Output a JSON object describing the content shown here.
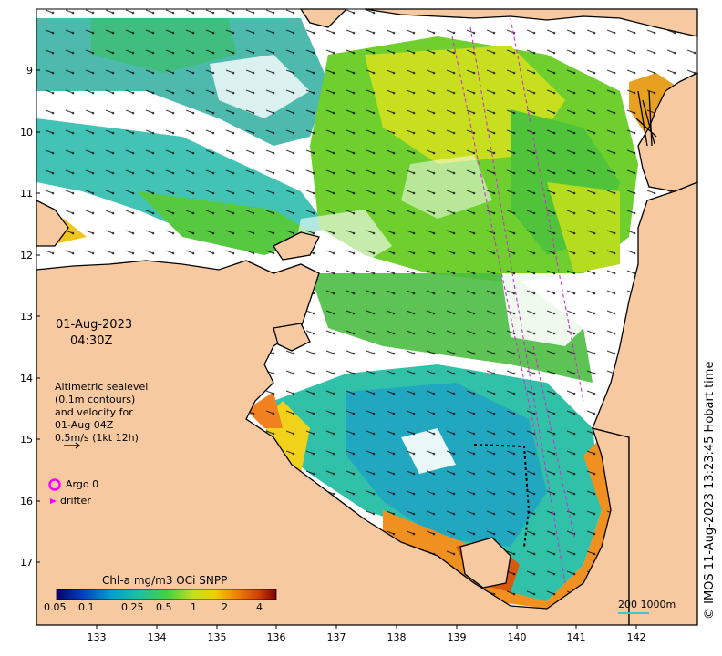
{
  "map": {
    "date": "01-Aug-2023",
    "time": "04:30Z",
    "y_ticks": [
      "9",
      "10",
      "11",
      "12",
      "13",
      "14",
      "15",
      "16",
      "17"
    ],
    "x_ticks": [
      "133",
      "134",
      "135",
      "136",
      "137",
      "138",
      "139",
      "140",
      "141",
      "142"
    ],
    "colors": {
      "land": "#f7c9a0",
      "coast": "#000000",
      "ocean_no_data": "#ffffff",
      "track": "#cc33cc"
    }
  },
  "legend": {
    "sealevel_lines": [
      "Altimetric sealevel",
      "(0.1m contours)",
      "and velocity for",
      "01-Aug 04Z",
      "0.5m/s (1kt 12h)"
    ],
    "argo_label": "Argo 0",
    "drifter_label": "drifter",
    "argo_color": "#ff00ff"
  },
  "colorbar": {
    "title": "Chl-a mg/m3 OCi SNPP",
    "ticks": [
      "0.05",
      "0.1",
      "0.25",
      "0.5",
      "1",
      "2",
      "4"
    ],
    "stops": [
      "#08006b",
      "#0040c0",
      "#00a0d0",
      "#20c0a0",
      "#40d040",
      "#c0e020",
      "#f0d000",
      "#f08000",
      "#d04000",
      "#800000"
    ]
  },
  "scale": {
    "label": "200  1000m"
  },
  "credit": "© IMOS 11-Aug-2023 13:23:45 Hobart time"
}
